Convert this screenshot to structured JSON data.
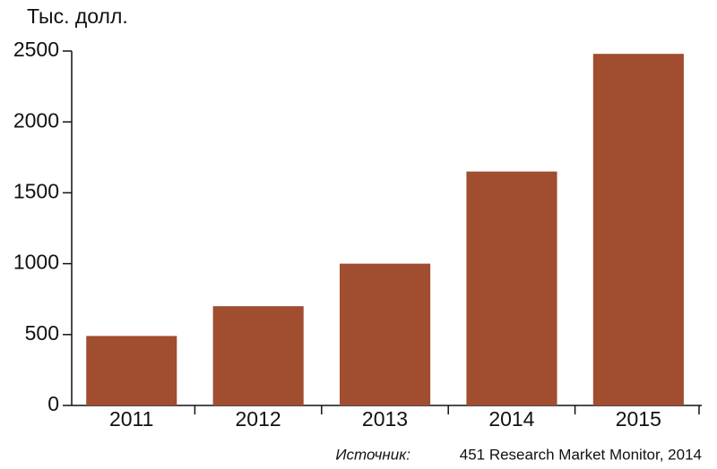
{
  "chart_data": {
    "type": "bar",
    "y_label": "Тыс. долл.",
    "source_label": "Источник:",
    "source": "451 Research Market Monitor, 2014",
    "categories": [
      "2011",
      "2012",
      "2013",
      "2014",
      "2015"
    ],
    "values": [
      490,
      700,
      1000,
      1650,
      2480
    ],
    "color": "#a04d30",
    "ylim": [
      0,
      2500
    ],
    "yticks": [
      0,
      500,
      1000,
      1500,
      2000,
      2500
    ]
  }
}
